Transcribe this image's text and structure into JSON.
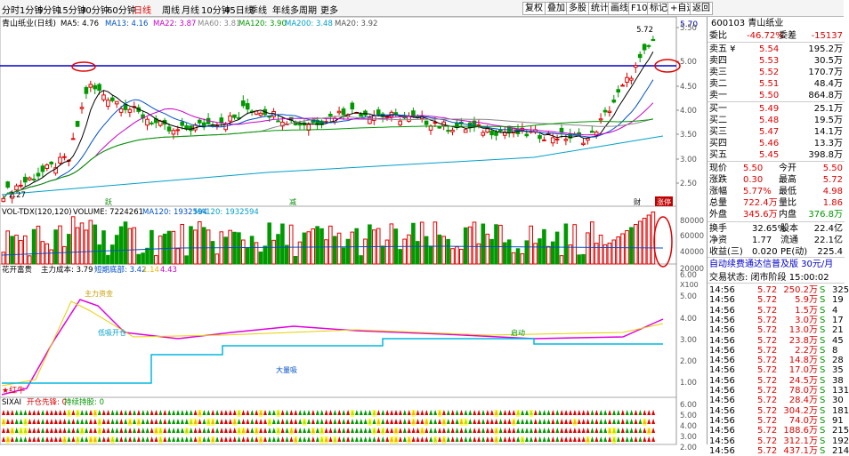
{
  "toolbar": {
    "periods": [
      "分时",
      "1分钟",
      "5分钟",
      "15分钟",
      "30分钟",
      "60分钟",
      "日线",
      "周线",
      "月线",
      "10分钟",
      "45日线",
      "季线",
      "年线",
      "多周期",
      "更多"
    ],
    "right": [
      "复权",
      "叠加",
      "多股",
      "统计",
      "画线",
      "F10",
      "标记",
      "+自选",
      "返回"
    ]
  },
  "main_legend": {
    "name": "青山纸业(日线)",
    "ma5": "MA5: 4.76",
    "ma13": "MA13: 4.16",
    "ma22": "MA22: 3.87",
    "ma60": "MA60: 3.81",
    "ma120": "MA120: 3.90",
    "ma200": "MA200: 3.48",
    "ma20": "MA20: 3.92"
  },
  "price_axis": {
    "top": "5.70",
    "ticks": [
      "5.50",
      "5.00",
      "4.50",
      "4.00",
      "3.50",
      "3.00",
      "2.50"
    ]
  },
  "annotations": {
    "high": "5.72",
    "low": "2.27",
    "yue": "跃",
    "jian": "减",
    "cai": "财",
    "zhangting": "涨停",
    "hongniu": "★红牛"
  },
  "vol_legend": {
    "title": "VOL-TDX(120,120)",
    "volume": "VOLUME: 7224261",
    "ma120a": "MA120: 1932594",
    "ma120b": "MA120: 1932594"
  },
  "vol_axis": {
    "ticks": [
      "80000",
      "60000",
      "40000",
      "20000"
    ],
    "unit": "X100"
  },
  "ind_legend": {
    "title": "花开富贵",
    "cost": "主力成本: 3.79",
    "short": "短期底部: 3.42",
    "a": "1.14",
    "b": "4.43"
  },
  "ind_axis": {
    "ticks": [
      "6.00",
      "5.00",
      "4.00",
      "3.00",
      "2.00",
      "1.00"
    ]
  },
  "ind_labels": {
    "t1": "主力资金",
    "t2": "低吸开仓",
    "t3": "大量吸",
    "t4": "启动"
  },
  "sig_legend": {
    "title": "SIXAI",
    "a": "开仓先锋: 0",
    "b": "持续持股: 0"
  },
  "sig_axis": {
    "ticks": [
      "6.00",
      "5.00",
      "4.00",
      "3.00",
      "2.00"
    ]
  },
  "quote": {
    "code": "600103 青山纸业",
    "weibi_l": "委比",
    "weibi_v": "-46.72%",
    "weicha_l": "委差",
    "weicha_v": "-15137",
    "asks": [
      {
        "l": "卖五 ¥",
        "p": "5.54",
        "v": "195.2万"
      },
      {
        "l": "卖四",
        "p": "5.53",
        "v": "30.5万"
      },
      {
        "l": "卖三",
        "p": "5.52",
        "v": "170.7万"
      },
      {
        "l": "卖二",
        "p": "5.51",
        "v": "48.4万"
      },
      {
        "l": "卖一",
        "p": "5.50",
        "v": "864.8万"
      }
    ],
    "bids": [
      {
        "l": "买一",
        "p": "5.49",
        "v": "25.1万"
      },
      {
        "l": "买二",
        "p": "5.48",
        "v": "19.5万"
      },
      {
        "l": "买三",
        "p": "5.47",
        "v": "14.1万"
      },
      {
        "l": "买四",
        "p": "5.46",
        "v": "13.3万"
      },
      {
        "l": "买五",
        "p": "5.45",
        "v": "398.8万"
      }
    ],
    "stats": [
      {
        "l1": "现价",
        "v1": "5.50",
        "l2": "今开",
        "v2": "5.50"
      },
      {
        "l1": "涨跌",
        "v1": "0.30",
        "l2": "最高",
        "v2": "5.72"
      },
      {
        "l1": "涨幅",
        "v1": "5.77%",
        "l2": "最低",
        "v2": "4.98"
      },
      {
        "l1": "总量",
        "v1": "722.4万",
        "l2": "量比",
        "v2": "1.86"
      },
      {
        "l1": "外盘",
        "v1": "345.6万",
        "l2": "内盘",
        "v2": "376.8万"
      }
    ],
    "stats2": [
      {
        "l1": "换手",
        "v1": "32.65%",
        "l2": "股本",
        "v2": "22.4亿"
      },
      {
        "l1": "净资",
        "v1": "1.77",
        "l2": "流通",
        "v2": "22.1亿"
      },
      {
        "l1": "收益(三)",
        "v1": "0.020",
        "l2": "PE(动)",
        "v2": "225.4"
      }
    ],
    "ad": "自动续费通达信普及版  30元/月",
    "status": "交易状态: 闭市阶段 15:00:02",
    "ticks": [
      {
        "t": "14:56",
        "p": "5.72",
        "v": "250.2万",
        "s": "S",
        "n": "325"
      },
      {
        "t": "14:56",
        "p": "5.72",
        "v": "5.9万",
        "s": "S",
        "n": "19"
      },
      {
        "t": "14:56",
        "p": "5.72",
        "v": "1.5万",
        "s": "S",
        "n": "4"
      },
      {
        "t": "14:56",
        "p": "5.72",
        "v": "3.0万",
        "s": "S",
        "n": "17"
      },
      {
        "t": "14:56",
        "p": "5.72",
        "v": "13.0万",
        "s": "S",
        "n": "21"
      },
      {
        "t": "14:56",
        "p": "5.72",
        "v": "23.8万",
        "s": "S",
        "n": "45"
      },
      {
        "t": "14:56",
        "p": "5.72",
        "v": "2.2万",
        "s": "S",
        "n": "8"
      },
      {
        "t": "14:56",
        "p": "5.72",
        "v": "14.8万",
        "s": "S",
        "n": "28"
      },
      {
        "t": "14:56",
        "p": "5.72",
        "v": "17.0万",
        "s": "S",
        "n": "35"
      },
      {
        "t": "14:56",
        "p": "5.72",
        "v": "24.5万",
        "s": "S",
        "n": "38"
      },
      {
        "t": "14:56",
        "p": "5.72",
        "v": "78.0万",
        "s": "S",
        "n": "131"
      },
      {
        "t": "14:56",
        "p": "5.72",
        "v": "28.4万",
        "s": "S",
        "n": "30"
      },
      {
        "t": "14:56",
        "p": "5.72",
        "v": "304.2万",
        "s": "S",
        "n": "181"
      },
      {
        "t": "14:56",
        "p": "5.72",
        "v": "74.0万",
        "s": "S",
        "n": "91"
      },
      {
        "t": "14:56",
        "p": "5.72",
        "v": "188.6万",
        "s": "S",
        "n": "215"
      },
      {
        "t": "14:56",
        "p": "5.72",
        "v": "312.1万",
        "s": "S",
        "n": "192"
      },
      {
        "t": "14:56",
        "p": "5.72",
        "v": "437.1万",
        "s": "S",
        "n": "214"
      }
    ]
  }
}
